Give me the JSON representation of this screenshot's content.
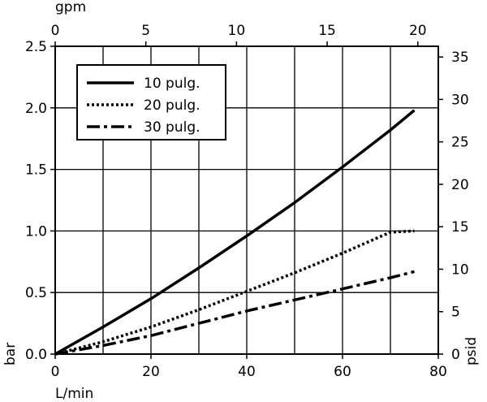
{
  "chart_data": {
    "type": "line",
    "xlabel": "L/min",
    "ylabel": "bar",
    "x2label": "gpm",
    "y2label": "psid",
    "xlim": [
      0,
      80
    ],
    "ylim": [
      0,
      2.5
    ],
    "x2lim": [
      0,
      21.13
    ],
    "y2lim": [
      0,
      36.26
    ],
    "x_ticks": [
      "0",
      "20",
      "40",
      "60",
      "80"
    ],
    "y_ticks": [
      "0.0",
      "0.5",
      "1.0",
      "1.5",
      "2.0",
      "2.5"
    ],
    "x2_ticks": [
      "0",
      "5",
      "10",
      "15",
      "20"
    ],
    "y2_ticks": [
      "0",
      "5",
      "10",
      "15",
      "20",
      "25",
      "30",
      "35"
    ],
    "grid": true,
    "legend_position": "top-left",
    "series": [
      {
        "name": "10 pulg.",
        "style": "solid",
        "x": [
          0,
          10,
          20,
          30,
          40,
          50,
          60,
          70,
          75
        ],
        "y": [
          0,
          0.22,
          0.45,
          0.7,
          0.96,
          1.23,
          1.52,
          1.82,
          1.98
        ]
      },
      {
        "name": "20 pulg.",
        "style": "dotted",
        "x": [
          0,
          10,
          20,
          30,
          40,
          50,
          60,
          70,
          75
        ],
        "y": [
          0,
          0.1,
          0.22,
          0.36,
          0.51,
          0.66,
          0.82,
          0.99,
          1.0
        ]
      },
      {
        "name": "30 pulg.",
        "style": "dashdot",
        "x": [
          0,
          10,
          20,
          30,
          40,
          50,
          60,
          70,
          75
        ],
        "y": [
          0,
          0.07,
          0.15,
          0.25,
          0.35,
          0.44,
          0.53,
          0.62,
          0.67
        ]
      }
    ],
    "colors": {
      "line": "#000000",
      "grid": "#000000",
      "background": "#ffffff"
    }
  }
}
